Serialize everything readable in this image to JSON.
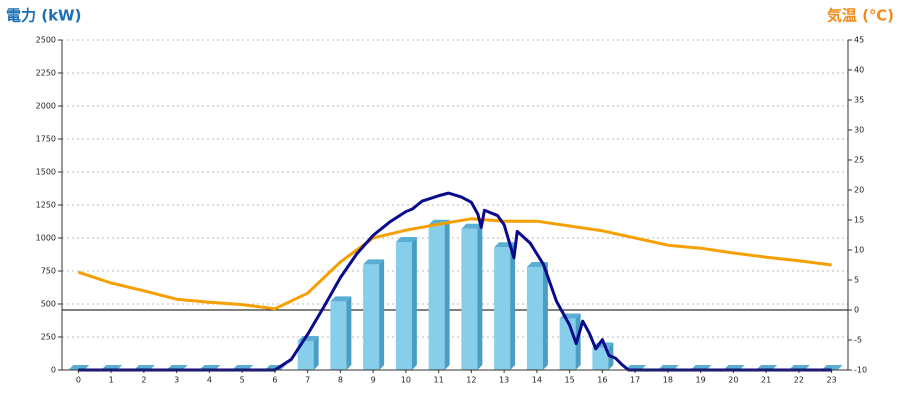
{
  "chart_data": {
    "type": "bar",
    "title": "電力 (kW)",
    "y2_title": "気温 (℃)",
    "categories": [
      "0",
      "1",
      "2",
      "3",
      "4",
      "5",
      "6",
      "7",
      "8",
      "9",
      "10",
      "11",
      "12",
      "13",
      "14",
      "15",
      "16",
      "17",
      "18",
      "19",
      "20",
      "21",
      "22",
      "23"
    ],
    "ylim": [
      0,
      2500
    ],
    "yticks": [
      0,
      250,
      500,
      750,
      1000,
      1250,
      1500,
      1750,
      2000,
      2250,
      2500
    ],
    "y2lim": [
      -10,
      45
    ],
    "y2ticks": [
      -10,
      -5,
      0,
      5,
      10,
      15,
      20,
      25,
      30,
      35,
      40,
      45
    ],
    "grid": true,
    "series": [
      {
        "type": "bar",
        "color": "#87ceeb",
        "values": [
          0,
          0,
          0,
          0,
          0,
          0,
          0,
          220,
          520,
          800,
          970,
          1100,
          1070,
          930,
          780,
          390,
          170,
          0,
          0,
          0,
          0,
          0,
          0,
          0
        ]
      },
      {
        "type": "line",
        "axis": "y2",
        "color": "#f5a000",
        "values": [
          6.3,
          4.5,
          3.2,
          1.8,
          1.3,
          0.9,
          0.2,
          2.8,
          8,
          12,
          13.3,
          14.3,
          15.2,
          14.8,
          14.8,
          14,
          13.2,
          12,
          10.8,
          10.3,
          9.5,
          8.8,
          8.2,
          7.5
        ]
      },
      {
        "type": "line",
        "color": "#0a0a8c",
        "x": [
          0,
          6,
          6.5,
          7,
          7.5,
          8,
          8.5,
          9,
          9.5,
          10,
          10.2,
          10.5,
          11,
          11.3,
          11.7,
          12,
          12.2,
          12.3,
          12.4,
          12.8,
          13,
          13.3,
          13.4,
          13.8,
          14.2,
          14.6,
          14.8,
          15,
          15.2,
          15.4,
          15.6,
          15.8,
          16,
          16.2,
          16.4,
          16.6,
          16.8,
          23
        ],
        "values": [
          0,
          0,
          80,
          270,
          480,
          700,
          880,
          1020,
          1120,
          1200,
          1220,
          1280,
          1320,
          1340,
          1310,
          1270,
          1180,
          1080,
          1210,
          1170,
          1100,
          850,
          1050,
          960,
          800,
          520,
          430,
          340,
          200,
          370,
          280,
          160,
          230,
          110,
          90,
          40,
          0,
          0
        ]
      }
    ]
  }
}
